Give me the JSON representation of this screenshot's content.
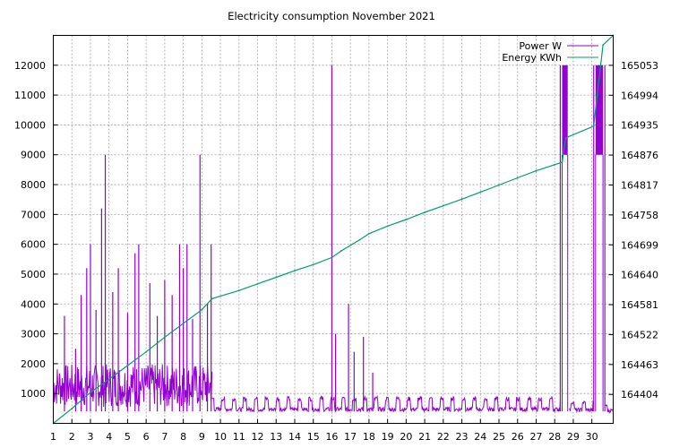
{
  "chart_data": {
    "type": "line",
    "title": "Electricity consumption November 2021",
    "xlim": [
      1,
      31.15
    ],
    "ylim": [
      0,
      13000
    ],
    "y2lim": [
      164347,
      165112
    ],
    "x_ticks": [
      1,
      2,
      3,
      4,
      5,
      6,
      7,
      8,
      9,
      10,
      11,
      12,
      13,
      14,
      15,
      16,
      17,
      18,
      19,
      20,
      21,
      22,
      23,
      24,
      25,
      26,
      27,
      28,
      29,
      30
    ],
    "y_ticks": [
      1000,
      2000,
      3000,
      4000,
      5000,
      6000,
      7000,
      8000,
      9000,
      10000,
      11000,
      12000
    ],
    "y2_ticks": [
      164404,
      164463,
      164522,
      164581,
      164640,
      164699,
      164758,
      164817,
      164876,
      164935,
      164994,
      165053
    ],
    "grid": true,
    "legend_position": "top-right",
    "series": [
      {
        "name": "Power W",
        "axis": "left",
        "color": "#9400d3",
        "segments": [
          {
            "from": 1.0,
            "to": 9.55,
            "base": 1050,
            "amp": 900
          },
          {
            "from": 9.55,
            "to": 28.3,
            "base": 520,
            "amp": 380
          },
          {
            "from": 28.8,
            "to": 30.1,
            "base": 500,
            "amp": 250
          },
          {
            "from": 30.7,
            "to": 31.15,
            "base": 480,
            "amp": 150
          }
        ],
        "spikes": [
          [
            1.6,
            3600
          ],
          [
            2.2,
            2500
          ],
          [
            2.5,
            4300
          ],
          [
            2.8,
            5200
          ],
          [
            3.0,
            6000
          ],
          [
            3.3,
            3800
          ],
          [
            3.6,
            7200
          ],
          [
            3.8,
            9000
          ],
          [
            4.2,
            4400
          ],
          [
            4.5,
            5200
          ],
          [
            5.0,
            3700
          ],
          [
            5.4,
            5700
          ],
          [
            5.6,
            6000
          ],
          [
            6.2,
            4700
          ],
          [
            6.6,
            3600
          ],
          [
            7.0,
            4800
          ],
          [
            7.4,
            4300
          ],
          [
            7.8,
            6000
          ],
          [
            8.0,
            5200
          ],
          [
            8.2,
            6000
          ],
          [
            8.5,
            3500
          ],
          [
            8.9,
            9000
          ],
          [
            9.3,
            4000
          ],
          [
            9.5,
            6000
          ],
          [
            16.0,
            12000
          ],
          [
            16.2,
            3000
          ],
          [
            16.9,
            4000
          ],
          [
            17.2,
            2400
          ],
          [
            17.7,
            2900
          ],
          [
            18.2,
            1700
          ],
          [
            28.3,
            12000
          ],
          [
            30.1,
            12000
          ],
          [
            30.7,
            12000
          ]
        ],
        "bursts": [
          {
            "from": 28.4,
            "to": 28.7,
            "low": 9000,
            "high": 12000
          },
          {
            "from": 30.2,
            "to": 30.6,
            "low": 9000,
            "high": 12000
          }
        ]
      },
      {
        "name": "Energy KWh",
        "axis": "right",
        "color": "#009e73",
        "x": [
          1.0,
          2.0,
          3.0,
          4.0,
          5.0,
          6.0,
          7.0,
          8.0,
          9.0,
          9.55,
          11.0,
          12.0,
          13.0,
          14.0,
          15.0,
          16.0,
          16.5,
          17.5,
          18.0,
          19.0,
          20.0,
          21.0,
          22.0,
          23.0,
          24.0,
          25.0,
          26.0,
          27.0,
          28.0,
          28.4,
          28.6,
          30.1,
          30.6,
          31.15
        ],
        "y": [
          164347,
          164376,
          164408,
          164434,
          164461,
          164488,
          164517,
          164544,
          164571,
          164593,
          164609,
          164622,
          164635,
          164648,
          164660,
          164674,
          164687,
          164709,
          164721,
          164736,
          164749,
          164763,
          164776,
          164789,
          164803,
          164817,
          164831,
          164845,
          164857,
          164862,
          164910,
          164933,
          165093,
          165112
        ]
      }
    ]
  }
}
